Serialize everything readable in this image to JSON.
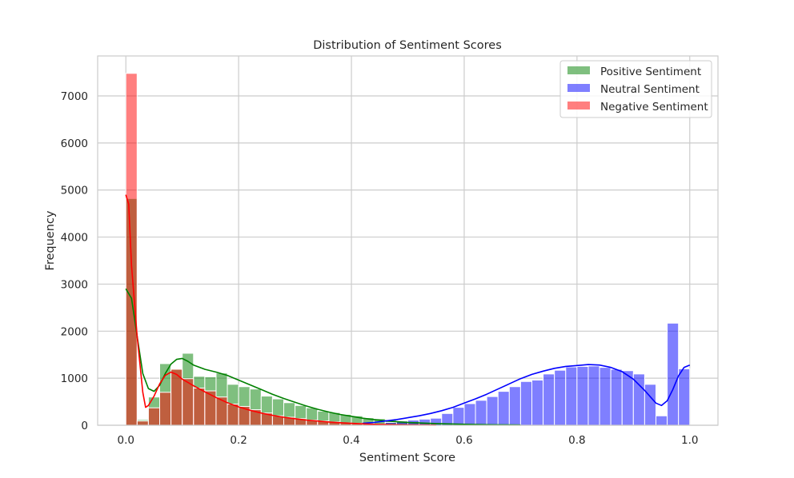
{
  "chart_data": {
    "type": "histogram",
    "title": "Distribution of Sentiment Scores",
    "xlabel": "Sentiment Score",
    "ylabel": "Frequency",
    "xlim": [
      -0.05,
      1.05
    ],
    "ylim": [
      0,
      7850
    ],
    "xticks": [
      0.0,
      0.2,
      0.4,
      0.6,
      0.8,
      1.0
    ],
    "xtick_labels": [
      "0.0",
      "0.2",
      "0.4",
      "0.6",
      "0.8",
      "1.0"
    ],
    "yticks": [
      0,
      1000,
      2000,
      3000,
      4000,
      5000,
      6000,
      7000
    ],
    "ytick_labels": [
      "0",
      "1000",
      "2000",
      "3000",
      "4000",
      "5000",
      "6000",
      "7000"
    ],
    "grid": true,
    "legend_position": "top-right",
    "bin_width": 0.02,
    "series": [
      {
        "name": "Positive Sentiment",
        "color": "#008000",
        "line_color": "#008000",
        "bins": [
          [
            0.0,
            4820
          ],
          [
            0.02,
            120
          ],
          [
            0.04,
            600
          ],
          [
            0.06,
            1310
          ],
          [
            0.08,
            1200
          ],
          [
            0.1,
            1530
          ],
          [
            0.12,
            1040
          ],
          [
            0.14,
            1030
          ],
          [
            0.16,
            1110
          ],
          [
            0.18,
            870
          ],
          [
            0.2,
            820
          ],
          [
            0.22,
            770
          ],
          [
            0.24,
            620
          ],
          [
            0.26,
            560
          ],
          [
            0.28,
            480
          ],
          [
            0.3,
            420
          ],
          [
            0.32,
            370
          ],
          [
            0.34,
            300
          ],
          [
            0.36,
            270
          ],
          [
            0.38,
            230
          ],
          [
            0.4,
            200
          ],
          [
            0.42,
            160
          ],
          [
            0.44,
            140
          ],
          [
            0.46,
            110
          ],
          [
            0.48,
            90
          ],
          [
            0.5,
            80
          ],
          [
            0.52,
            60
          ],
          [
            0.54,
            50
          ],
          [
            0.56,
            40
          ],
          [
            0.58,
            30
          ],
          [
            0.6,
            25
          ],
          [
            0.62,
            20
          ],
          [
            0.64,
            15
          ],
          [
            0.66,
            10
          ]
        ],
        "kde": [
          [
            0.0,
            2900
          ],
          [
            0.01,
            2700
          ],
          [
            0.02,
            1900
          ],
          [
            0.03,
            1100
          ],
          [
            0.04,
            780
          ],
          [
            0.05,
            720
          ],
          [
            0.06,
            850
          ],
          [
            0.07,
            1100
          ],
          [
            0.08,
            1300
          ],
          [
            0.09,
            1400
          ],
          [
            0.1,
            1420
          ],
          [
            0.11,
            1360
          ],
          [
            0.12,
            1280
          ],
          [
            0.14,
            1190
          ],
          [
            0.16,
            1130
          ],
          [
            0.18,
            1060
          ],
          [
            0.2,
            960
          ],
          [
            0.22,
            860
          ],
          [
            0.24,
            760
          ],
          [
            0.26,
            660
          ],
          [
            0.28,
            570
          ],
          [
            0.3,
            490
          ],
          [
            0.32,
            410
          ],
          [
            0.34,
            340
          ],
          [
            0.36,
            280
          ],
          [
            0.38,
            230
          ],
          [
            0.4,
            190
          ],
          [
            0.42,
            150
          ],
          [
            0.44,
            120
          ],
          [
            0.46,
            95
          ],
          [
            0.48,
            75
          ],
          [
            0.5,
            60
          ],
          [
            0.52,
            50
          ],
          [
            0.55,
            35
          ],
          [
            0.6,
            20
          ],
          [
            0.65,
            10
          ],
          [
            0.7,
            5
          ]
        ]
      },
      {
        "name": "Neutral Sentiment",
        "color": "#0000ff",
        "line_color": "#0000ff",
        "bins": [
          [
            0.46,
            60
          ],
          [
            0.48,
            90
          ],
          [
            0.5,
            110
          ],
          [
            0.52,
            130
          ],
          [
            0.54,
            150
          ],
          [
            0.56,
            250
          ],
          [
            0.58,
            380
          ],
          [
            0.6,
            460
          ],
          [
            0.62,
            530
          ],
          [
            0.64,
            610
          ],
          [
            0.66,
            720
          ],
          [
            0.68,
            820
          ],
          [
            0.7,
            930
          ],
          [
            0.72,
            960
          ],
          [
            0.74,
            1090
          ],
          [
            0.76,
            1170
          ],
          [
            0.78,
            1240
          ],
          [
            0.8,
            1250
          ],
          [
            0.82,
            1260
          ],
          [
            0.84,
            1230
          ],
          [
            0.86,
            1190
          ],
          [
            0.88,
            1160
          ],
          [
            0.9,
            1090
          ],
          [
            0.92,
            870
          ],
          [
            0.94,
            200
          ],
          [
            0.96,
            2170
          ],
          [
            0.98,
            1200
          ]
        ],
        "kde": [
          [
            0.42,
            40
          ],
          [
            0.44,
            60
          ],
          [
            0.46,
            90
          ],
          [
            0.48,
            120
          ],
          [
            0.5,
            160
          ],
          [
            0.52,
            200
          ],
          [
            0.54,
            250
          ],
          [
            0.56,
            310
          ],
          [
            0.58,
            380
          ],
          [
            0.6,
            470
          ],
          [
            0.62,
            560
          ],
          [
            0.64,
            660
          ],
          [
            0.66,
            770
          ],
          [
            0.68,
            880
          ],
          [
            0.7,
            990
          ],
          [
            0.72,
            1080
          ],
          [
            0.74,
            1150
          ],
          [
            0.76,
            1210
          ],
          [
            0.78,
            1250
          ],
          [
            0.8,
            1270
          ],
          [
            0.82,
            1290
          ],
          [
            0.84,
            1280
          ],
          [
            0.86,
            1230
          ],
          [
            0.88,
            1140
          ],
          [
            0.9,
            980
          ],
          [
            0.92,
            740
          ],
          [
            0.94,
            470
          ],
          [
            0.95,
            420
          ],
          [
            0.96,
            520
          ],
          [
            0.97,
            760
          ],
          [
            0.98,
            1050
          ],
          [
            0.99,
            1230
          ],
          [
            1.0,
            1280
          ]
        ]
      },
      {
        "name": "Negative Sentiment",
        "color": "#ff0000",
        "line_color": "#ff0000",
        "bins": [
          [
            0.0,
            7480
          ],
          [
            0.02,
            90
          ],
          [
            0.04,
            370
          ],
          [
            0.06,
            700
          ],
          [
            0.08,
            1190
          ],
          [
            0.1,
            990
          ],
          [
            0.12,
            790
          ],
          [
            0.14,
            730
          ],
          [
            0.16,
            600
          ],
          [
            0.18,
            450
          ],
          [
            0.2,
            400
          ],
          [
            0.22,
            330
          ],
          [
            0.24,
            260
          ],
          [
            0.26,
            200
          ],
          [
            0.28,
            170
          ],
          [
            0.3,
            140
          ],
          [
            0.32,
            110
          ],
          [
            0.34,
            90
          ],
          [
            0.36,
            70
          ],
          [
            0.38,
            50
          ],
          [
            0.4,
            40
          ],
          [
            0.42,
            30
          ],
          [
            0.44,
            20
          ],
          [
            0.46,
            10
          ]
        ],
        "kde": [
          [
            0.0,
            4900
          ],
          [
            0.005,
            4700
          ],
          [
            0.01,
            3400
          ],
          [
            0.02,
            1900
          ],
          [
            0.03,
            700
          ],
          [
            0.035,
            380
          ],
          [
            0.04,
            420
          ],
          [
            0.05,
            620
          ],
          [
            0.06,
            880
          ],
          [
            0.07,
            1060
          ],
          [
            0.08,
            1130
          ],
          [
            0.09,
            1080
          ],
          [
            0.1,
            980
          ],
          [
            0.12,
            840
          ],
          [
            0.14,
            710
          ],
          [
            0.16,
            590
          ],
          [
            0.18,
            480
          ],
          [
            0.2,
            390
          ],
          [
            0.22,
            320
          ],
          [
            0.24,
            260
          ],
          [
            0.26,
            210
          ],
          [
            0.28,
            170
          ],
          [
            0.3,
            140
          ],
          [
            0.32,
            110
          ],
          [
            0.34,
            90
          ],
          [
            0.36,
            70
          ],
          [
            0.38,
            55
          ],
          [
            0.4,
            40
          ],
          [
            0.42,
            30
          ],
          [
            0.44,
            20
          ],
          [
            0.46,
            15
          ],
          [
            0.5,
            8
          ],
          [
            0.55,
            3
          ]
        ]
      }
    ]
  }
}
